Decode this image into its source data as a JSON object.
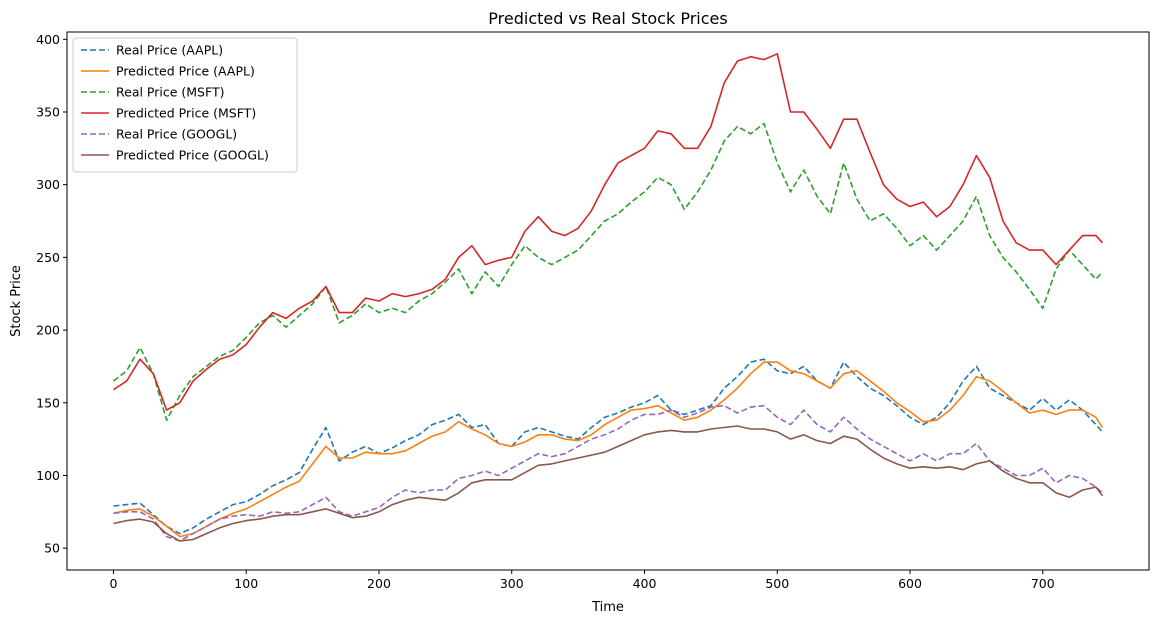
{
  "chart_data": {
    "type": "line",
    "title": "Predicted vs Real Stock Prices",
    "xlabel": "Time",
    "ylabel": "Stock Price",
    "xlim": [
      -35,
      780
    ],
    "ylim": [
      35,
      405
    ],
    "xticks": [
      0,
      100,
      200,
      300,
      400,
      500,
      600,
      700
    ],
    "yticks": [
      50,
      100,
      150,
      200,
      250,
      300,
      350,
      400
    ],
    "grid": false,
    "legend_position": "top-left",
    "series": [
      {
        "name": "Real Price (AAPL)",
        "color": "#1f77b4",
        "style": "dashed",
        "x": [
          0,
          10,
          20,
          30,
          40,
          50,
          60,
          70,
          80,
          90,
          100,
          110,
          120,
          130,
          140,
          150,
          160,
          170,
          180,
          190,
          200,
          210,
          220,
          230,
          240,
          250,
          260,
          270,
          280,
          290,
          300,
          310,
          320,
          330,
          340,
          350,
          360,
          370,
          380,
          390,
          400,
          410,
          420,
          430,
          440,
          450,
          460,
          470,
          480,
          490,
          500,
          510,
          520,
          530,
          540,
          550,
          560,
          570,
          580,
          590,
          600,
          610,
          620,
          630,
          640,
          650,
          660,
          670,
          680,
          690,
          700,
          710,
          720,
          730,
          740,
          745
        ],
        "y": [
          79,
          80,
          81,
          73,
          65,
          60,
          64,
          70,
          75,
          80,
          82,
          87,
          93,
          97,
          102,
          118,
          133,
          110,
          116,
          120,
          115,
          119,
          124,
          128,
          135,
          138,
          142,
          133,
          135,
          122,
          120,
          130,
          133,
          130,
          127,
          125,
          133,
          140,
          143,
          147,
          150,
          155,
          145,
          142,
          145,
          148,
          160,
          168,
          178,
          180,
          172,
          170,
          175,
          165,
          160,
          178,
          168,
          160,
          155,
          148,
          140,
          135,
          140,
          150,
          165,
          175,
          160,
          155,
          150,
          145,
          153,
          145,
          152,
          145,
          135,
          130
        ]
      },
      {
        "name": "Predicted Price (AAPL)",
        "color": "#ff7f0e",
        "style": "solid",
        "x": [
          0,
          10,
          20,
          30,
          40,
          50,
          60,
          70,
          80,
          90,
          100,
          110,
          120,
          130,
          140,
          150,
          160,
          170,
          180,
          190,
          200,
          210,
          220,
          230,
          240,
          250,
          260,
          270,
          280,
          290,
          300,
          310,
          320,
          330,
          340,
          350,
          360,
          370,
          380,
          390,
          400,
          410,
          420,
          430,
          440,
          450,
          460,
          470,
          480,
          490,
          500,
          510,
          520,
          530,
          540,
          550,
          560,
          570,
          580,
          590,
          600,
          610,
          620,
          630,
          640,
          650,
          660,
          670,
          680,
          690,
          700,
          710,
          720,
          730,
          740,
          745
        ],
        "y": [
          74,
          76,
          77,
          72,
          65,
          58,
          60,
          65,
          70,
          74,
          77,
          82,
          87,
          92,
          96,
          108,
          120,
          112,
          112,
          116,
          115,
          115,
          117,
          122,
          127,
          130,
          137,
          132,
          128,
          122,
          120,
          123,
          128,
          128,
          125,
          124,
          128,
          135,
          140,
          145,
          146,
          148,
          143,
          138,
          140,
          145,
          152,
          160,
          170,
          178,
          178,
          172,
          170,
          165,
          160,
          170,
          172,
          165,
          158,
          150,
          144,
          137,
          138,
          145,
          155,
          168,
          165,
          158,
          150,
          143,
          145,
          142,
          145,
          145,
          140,
          133
        ]
      },
      {
        "name": "Real Price (MSFT)",
        "color": "#2ca02c",
        "style": "dashed",
        "x": [
          0,
          10,
          20,
          30,
          40,
          50,
          60,
          70,
          80,
          90,
          100,
          110,
          120,
          130,
          140,
          150,
          160,
          170,
          180,
          190,
          200,
          210,
          220,
          230,
          240,
          250,
          260,
          270,
          280,
          290,
          300,
          310,
          320,
          330,
          340,
          350,
          360,
          370,
          380,
          390,
          400,
          410,
          420,
          430,
          440,
          450,
          460,
          470,
          480,
          490,
          500,
          510,
          520,
          530,
          540,
          550,
          560,
          570,
          580,
          590,
          600,
          610,
          620,
          630,
          640,
          650,
          660,
          670,
          680,
          690,
          700,
          710,
          720,
          730,
          740,
          745
        ],
        "y": [
          165,
          172,
          188,
          170,
          138,
          155,
          168,
          175,
          182,
          186,
          195,
          205,
          210,
          202,
          210,
          218,
          230,
          205,
          210,
          218,
          212,
          215,
          212,
          220,
          225,
          233,
          242,
          225,
          240,
          230,
          245,
          258,
          250,
          245,
          250,
          255,
          265,
          275,
          280,
          288,
          295,
          305,
          300,
          283,
          295,
          310,
          330,
          340,
          335,
          342,
          315,
          295,
          310,
          292,
          280,
          315,
          290,
          275,
          280,
          270,
          258,
          265,
          255,
          265,
          275,
          292,
          265,
          250,
          240,
          228,
          215,
          242,
          255,
          245,
          235,
          240
        ]
      },
      {
        "name": "Predicted Price (MSFT)",
        "color": "#d62728",
        "style": "solid",
        "x": [
          0,
          10,
          20,
          30,
          40,
          50,
          60,
          70,
          80,
          90,
          100,
          110,
          120,
          130,
          140,
          150,
          160,
          170,
          180,
          190,
          200,
          210,
          220,
          230,
          240,
          250,
          260,
          270,
          280,
          290,
          300,
          310,
          320,
          330,
          340,
          350,
          360,
          370,
          380,
          390,
          400,
          410,
          420,
          430,
          440,
          450,
          460,
          470,
          480,
          490,
          500,
          510,
          520,
          530,
          540,
          550,
          560,
          570,
          580,
          590,
          600,
          610,
          620,
          630,
          640,
          650,
          660,
          670,
          680,
          690,
          700,
          710,
          720,
          730,
          740,
          745
        ],
        "y": [
          159,
          165,
          180,
          170,
          145,
          150,
          165,
          173,
          180,
          183,
          190,
          202,
          212,
          208,
          215,
          220,
          230,
          212,
          212,
          222,
          220,
          225,
          223,
          225,
          228,
          235,
          250,
          258,
          245,
          248,
          250,
          268,
          278,
          268,
          265,
          270,
          282,
          300,
          315,
          320,
          325,
          337,
          335,
          325,
          325,
          340,
          370,
          385,
          388,
          386,
          390,
          350,
          350,
          338,
          325,
          345,
          345,
          322,
          300,
          290,
          285,
          288,
          278,
          285,
          300,
          320,
          305,
          275,
          260,
          255,
          255,
          245,
          255,
          265,
          265,
          260
        ]
      },
      {
        "name": "Real Price (GOOGL)",
        "color": "#9467bd",
        "style": "dashed",
        "x": [
          0,
          10,
          20,
          30,
          40,
          50,
          60,
          70,
          80,
          90,
          100,
          110,
          120,
          130,
          140,
          150,
          160,
          170,
          180,
          190,
          200,
          210,
          220,
          230,
          240,
          250,
          260,
          270,
          280,
          290,
          300,
          310,
          320,
          330,
          340,
          350,
          360,
          370,
          380,
          390,
          400,
          410,
          420,
          430,
          440,
          450,
          460,
          470,
          480,
          490,
          500,
          510,
          520,
          530,
          540,
          550,
          560,
          570,
          580,
          590,
          600,
          610,
          620,
          630,
          640,
          650,
          660,
          670,
          680,
          690,
          700,
          710,
          720,
          730,
          740,
          745
        ],
        "y": [
          74,
          75,
          75,
          70,
          58,
          55,
          60,
          65,
          70,
          72,
          73,
          72,
          75,
          74,
          75,
          80,
          85,
          75,
          72,
          75,
          78,
          85,
          90,
          88,
          90,
          90,
          98,
          100,
          103,
          100,
          105,
          110,
          115,
          113,
          115,
          120,
          125,
          128,
          132,
          138,
          142,
          142,
          145,
          140,
          143,
          147,
          148,
          143,
          147,
          148,
          140,
          135,
          145,
          135,
          130,
          140,
          132,
          125,
          120,
          115,
          110,
          115,
          110,
          115,
          115,
          122,
          110,
          105,
          100,
          100,
          105,
          95,
          100,
          98,
          92,
          88
        ]
      },
      {
        "name": "Predicted Price (GOOGL)",
        "color": "#8c564b",
        "style": "solid",
        "x": [
          0,
          10,
          20,
          30,
          40,
          50,
          60,
          70,
          80,
          90,
          100,
          110,
          120,
          130,
          140,
          150,
          160,
          170,
          180,
          190,
          200,
          210,
          220,
          230,
          240,
          250,
          260,
          270,
          280,
          290,
          300,
          310,
          320,
          330,
          340,
          350,
          360,
          370,
          380,
          390,
          400,
          410,
          420,
          430,
          440,
          450,
          460,
          470,
          480,
          490,
          500,
          510,
          520,
          530,
          540,
          550,
          560,
          570,
          580,
          590,
          600,
          610,
          620,
          630,
          640,
          650,
          660,
          670,
          680,
          690,
          700,
          710,
          720,
          730,
          740,
          745
        ],
        "y": [
          67,
          69,
          70,
          68,
          60,
          55,
          56,
          60,
          64,
          67,
          69,
          70,
          72,
          73,
          73,
          75,
          77,
          74,
          71,
          72,
          75,
          80,
          83,
          85,
          84,
          83,
          88,
          95,
          97,
          97,
          97,
          102,
          107,
          108,
          110,
          112,
          114,
          116,
          120,
          124,
          128,
          130,
          131,
          130,
          130,
          132,
          133,
          134,
          132,
          132,
          130,
          125,
          128,
          124,
          122,
          127,
          125,
          118,
          112,
          108,
          105,
          106,
          105,
          106,
          104,
          108,
          110,
          103,
          98,
          95,
          95,
          88,
          85,
          90,
          92,
          86
        ]
      }
    ]
  }
}
